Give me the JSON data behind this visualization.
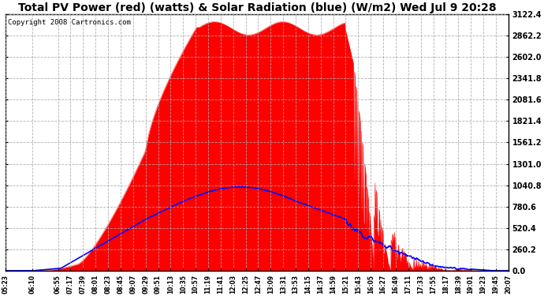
{
  "title": "Total PV Power (red) (watts) & Solar Radiation (blue) (W/m2) Wed Jul 9 20:28",
  "copyright": "Copyright 2008 Cartronics.com",
  "background_color": "#ffffff",
  "plot_bg_color": "#ffffff",
  "y_max": 3122.4,
  "y_ticks": [
    0.0,
    260.2,
    520.4,
    780.6,
    1040.8,
    1301.0,
    1561.2,
    1821.4,
    2081.6,
    2341.8,
    2602.0,
    2862.2,
    3122.4
  ],
  "y_tick_labels": [
    "0.0",
    "260.2",
    "520.4",
    "780.6",
    "1040.8",
    "1301.0",
    "1561.2",
    "1821.4",
    "2081.6",
    "2341.8",
    "2602.0",
    "2862.2",
    "3122.4"
  ],
  "grid_color": "#aaaaaa",
  "pv_color": "#ff0000",
  "solar_color": "#0000ff",
  "title_fontsize": 10,
  "copyright_fontsize": 6.5,
  "x_tick_labels": [
    "05:23",
    "06:10",
    "06:55",
    "07:17",
    "07:39",
    "08:01",
    "08:23",
    "08:45",
    "09:07",
    "09:29",
    "09:51",
    "10:13",
    "10:35",
    "10:57",
    "11:19",
    "11:41",
    "12:03",
    "12:25",
    "12:47",
    "13:09",
    "13:31",
    "13:53",
    "14:15",
    "14:37",
    "14:59",
    "15:21",
    "15:43",
    "16:05",
    "16:27",
    "16:49",
    "17:11",
    "17:33",
    "17:55",
    "18:17",
    "18:39",
    "19:01",
    "19:23",
    "19:45",
    "20:07"
  ]
}
